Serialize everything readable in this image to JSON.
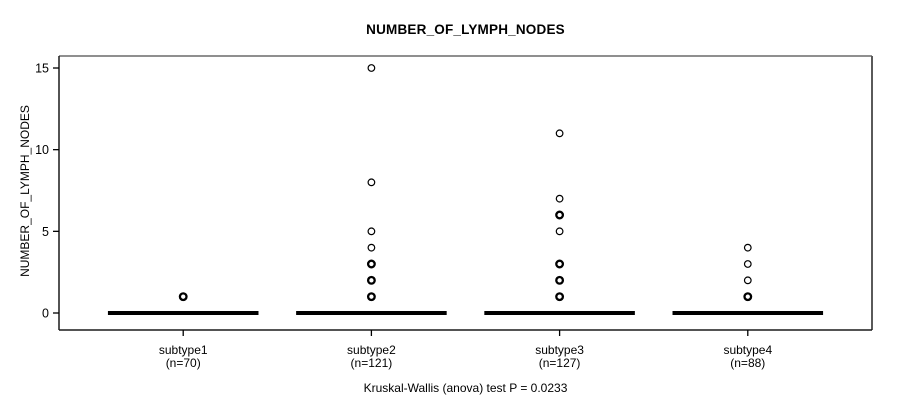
{
  "figure": {
    "title": "NUMBER_OF_LYMPH_NODES",
    "caption": "Kruskal-Wallis (anova) test P = 0.0233"
  },
  "colors": {
    "foreground": "#000000",
    "frame_top": "#8f8f8f",
    "frame_right": "#5a5a5a",
    "frame_main": "#1a1a1a"
  },
  "chart_data": {
    "type": "boxplot",
    "title": "NUMBER_OF_LYMPH_NODES",
    "xlabel": "",
    "ylabel": "NUMBER_OF_LYMPH_NODES",
    "yticks": [
      0,
      5,
      10,
      15
    ],
    "ylim": [
      -0.5,
      15.5
    ],
    "grid": false,
    "footnote": "Kruskal-Wallis (anova) test P = 0.0233",
    "groups": [
      {
        "label": "subtype1",
        "sublabel": "(n=70)",
        "n": 70,
        "median": 0,
        "q1": 0,
        "q3": 0,
        "whisker_low": 0,
        "whisker_high": 0,
        "outliers": [
          {
            "value": 1,
            "bold": true
          }
        ]
      },
      {
        "label": "subtype2",
        "sublabel": "(n=121)",
        "n": 121,
        "median": 0,
        "q1": 0,
        "q3": 0,
        "whisker_low": 0,
        "whisker_high": 0,
        "outliers": [
          {
            "value": 1,
            "bold": true
          },
          {
            "value": 2,
            "bold": true
          },
          {
            "value": 3,
            "bold": true
          },
          {
            "value": 4,
            "bold": false
          },
          {
            "value": 5,
            "bold": false
          },
          {
            "value": 8,
            "bold": false
          },
          {
            "value": 15,
            "bold": false
          }
        ]
      },
      {
        "label": "subtype3",
        "sublabel": "(n=127)",
        "n": 127,
        "median": 0,
        "q1": 0,
        "q3": 0,
        "whisker_low": 0,
        "whisker_high": 0,
        "outliers": [
          {
            "value": 1,
            "bold": true
          },
          {
            "value": 2,
            "bold": true
          },
          {
            "value": 3,
            "bold": true
          },
          {
            "value": 5,
            "bold": false
          },
          {
            "value": 6,
            "bold": true
          },
          {
            "value": 7,
            "bold": false
          },
          {
            "value": 11,
            "bold": false
          }
        ]
      },
      {
        "label": "subtype4",
        "sublabel": "(n=88)",
        "n": 88,
        "median": 0,
        "q1": 0,
        "q3": 0,
        "whisker_low": 0,
        "whisker_high": 0,
        "outliers": [
          {
            "value": 1,
            "bold": true
          },
          {
            "value": 2,
            "bold": false
          },
          {
            "value": 3,
            "bold": false
          },
          {
            "value": 4,
            "bold": false
          }
        ]
      }
    ]
  }
}
